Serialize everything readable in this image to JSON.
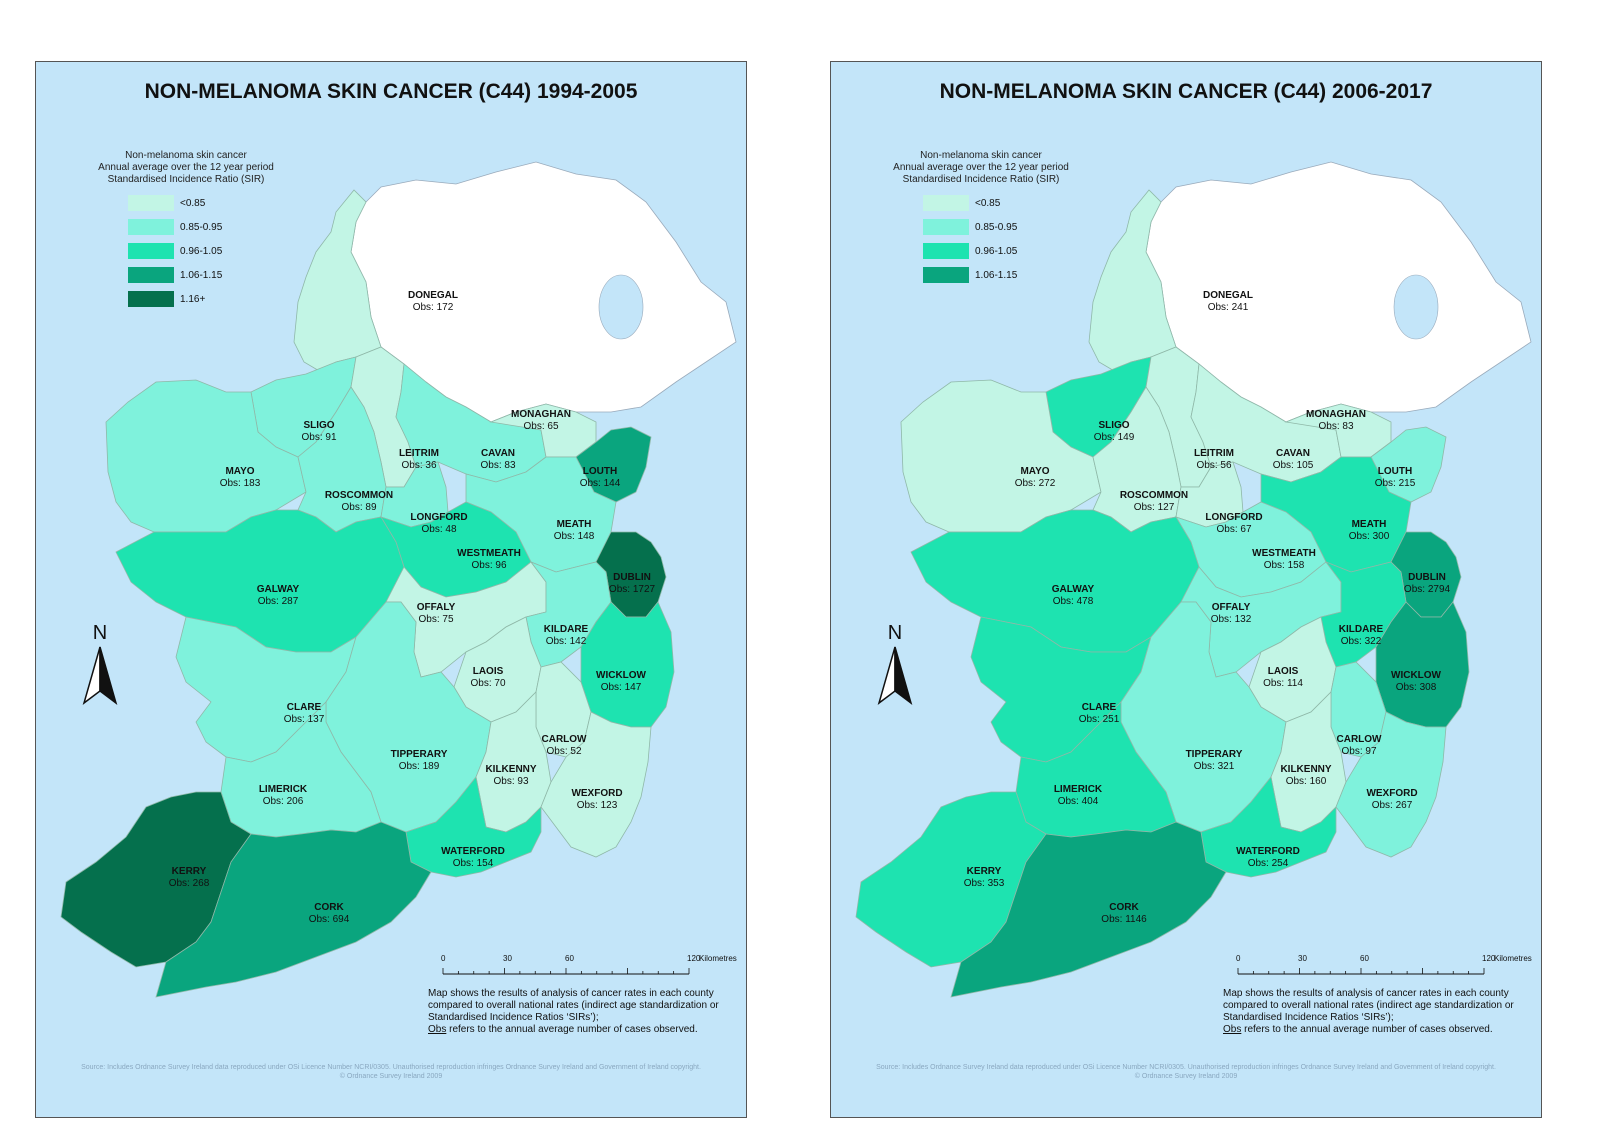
{
  "colors": {
    "sea": "#c3e5f9",
    "northern_ireland": "#ffffff",
    "class_lt085": "#c2f5e5",
    "class_085_095": "#7ff2dc",
    "class_096_105": "#1ee3b0",
    "class_106_115": "#0aa57e",
    "class_116plus": "#05704d"
  },
  "maps": [
    {
      "title": "NON-MELANOMA SKIN CANCER (C44) 1994-2005",
      "legend": {
        "line1": "Non-melanoma skin cancer",
        "line2": "Annual average over the 12 year period",
        "line3": "Standardised Incidence Ratio (SIR)",
        "items": [
          {
            "label": "<0.85",
            "color": "#c2f5e5"
          },
          {
            "label": "0.85-0.95",
            "color": "#7ff2dc"
          },
          {
            "label": "0.96-1.05",
            "color": "#1ee3b0"
          },
          {
            "label": "1.06-1.15",
            "color": "#0aa57e"
          },
          {
            "label": "1.16+",
            "color": "#05704d"
          }
        ]
      },
      "counties": [
        {
          "name": "DONEGAL",
          "obs": "Obs: 172",
          "class": "class_lt085"
        },
        {
          "name": "SLIGO",
          "obs": "Obs: 91",
          "class": "class_085_095"
        },
        {
          "name": "MAYO",
          "obs": "Obs: 183",
          "class": "class_085_095"
        },
        {
          "name": "LEITRIM",
          "obs": "Obs: 36",
          "class": "class_lt085"
        },
        {
          "name": "CAVAN",
          "obs": "Obs: 83",
          "class": "class_085_095"
        },
        {
          "name": "MONAGHAN",
          "obs": "Obs: 65",
          "class": "class_lt085"
        },
        {
          "name": "LOUTH",
          "obs": "Obs: 144",
          "class": "class_106_115"
        },
        {
          "name": "ROSCOMMON",
          "obs": "Obs: 89",
          "class": "class_085_095"
        },
        {
          "name": "LONGFORD",
          "obs": "Obs: 48",
          "class": "class_085_095"
        },
        {
          "name": "MEATH",
          "obs": "Obs: 148",
          "class": "class_085_095"
        },
        {
          "name": "WESTMEATH",
          "obs": "Obs: 96",
          "class": "class_096_105"
        },
        {
          "name": "GALWAY",
          "obs": "Obs: 287",
          "class": "class_096_105"
        },
        {
          "name": "DUBLIN",
          "obs": "Obs: 1727",
          "class": "class_116plus"
        },
        {
          "name": "OFFALY",
          "obs": "Obs: 75",
          "class": "class_lt085"
        },
        {
          "name": "KILDARE",
          "obs": "Obs: 142",
          "class": "class_085_095"
        },
        {
          "name": "LAOIS",
          "obs": "Obs: 70",
          "class": "class_lt085"
        },
        {
          "name": "WICKLOW",
          "obs": "Obs: 147",
          "class": "class_096_105"
        },
        {
          "name": "CLARE",
          "obs": "Obs: 137",
          "class": "class_085_095"
        },
        {
          "name": "CARLOW",
          "obs": "Obs: 52",
          "class": "class_lt085"
        },
        {
          "name": "TIPPERARY",
          "obs": "Obs: 189",
          "class": "class_085_095"
        },
        {
          "name": "KILKENNY",
          "obs": "Obs: 93",
          "class": "class_lt085"
        },
        {
          "name": "LIMERICK",
          "obs": "Obs: 206",
          "class": "class_085_095"
        },
        {
          "name": "WEXFORD",
          "obs": "Obs: 123",
          "class": "class_lt085"
        },
        {
          "name": "WATERFORD",
          "obs": "Obs: 154",
          "class": "class_096_105"
        },
        {
          "name": "KERRY",
          "obs": "Obs: 268",
          "class": "class_116plus"
        },
        {
          "name": "CORK",
          "obs": "Obs: 694",
          "class": "class_106_115"
        }
      ]
    },
    {
      "title": "NON-MELANOMA SKIN CANCER (C44) 2006-2017",
      "legend": {
        "line1": "Non-melanoma skin cancer",
        "line2": "Annual average over the 12 year period",
        "line3": "Standardised Incidence Ratio (SIR)",
        "items": [
          {
            "label": "<0.85",
            "color": "#c2f5e5"
          },
          {
            "label": "0.85-0.95",
            "color": "#7ff2dc"
          },
          {
            "label": "0.96-1.05",
            "color": "#1ee3b0"
          },
          {
            "label": "1.06-1.15",
            "color": "#0aa57e"
          }
        ]
      },
      "counties": [
        {
          "name": "DONEGAL",
          "obs": "Obs: 241",
          "class": "class_lt085"
        },
        {
          "name": "SLIGO",
          "obs": "Obs: 149",
          "class": "class_096_105"
        },
        {
          "name": "MAYO",
          "obs": "Obs: 272",
          "class": "class_lt085"
        },
        {
          "name": "LEITRIM",
          "obs": "Obs: 56",
          "class": "class_lt085"
        },
        {
          "name": "CAVAN",
          "obs": "Obs: 105",
          "class": "class_lt085"
        },
        {
          "name": "MONAGHAN",
          "obs": "Obs: 83",
          "class": "class_lt085"
        },
        {
          "name": "LOUTH",
          "obs": "Obs: 215",
          "class": "class_085_095"
        },
        {
          "name": "ROSCOMMON",
          "obs": "Obs: 127",
          "class": "class_lt085"
        },
        {
          "name": "LONGFORD",
          "obs": "Obs: 67",
          "class": "class_lt085"
        },
        {
          "name": "MEATH",
          "obs": "Obs: 300",
          "class": "class_096_105"
        },
        {
          "name": "WESTMEATH",
          "obs": "Obs: 158",
          "class": "class_085_095"
        },
        {
          "name": "GALWAY",
          "obs": "Obs: 478",
          "class": "class_096_105"
        },
        {
          "name": "DUBLIN",
          "obs": "Obs: 2794",
          "class": "class_106_115"
        },
        {
          "name": "OFFALY",
          "obs": "Obs: 132",
          "class": "class_085_095"
        },
        {
          "name": "KILDARE",
          "obs": "Obs: 322",
          "class": "class_096_105"
        },
        {
          "name": "LAOIS",
          "obs": "Obs: 114",
          "class": "class_lt085"
        },
        {
          "name": "WICKLOW",
          "obs": "Obs: 308",
          "class": "class_106_115"
        },
        {
          "name": "CLARE",
          "obs": "Obs: 251",
          "class": "class_096_105"
        },
        {
          "name": "CARLOW",
          "obs": "Obs: 97",
          "class": "class_085_095"
        },
        {
          "name": "TIPPERARY",
          "obs": "Obs: 321",
          "class": "class_085_095"
        },
        {
          "name": "KILKENNY",
          "obs": "Obs: 160",
          "class": "class_lt085"
        },
        {
          "name": "LIMERICK",
          "obs": "Obs: 404",
          "class": "class_096_105"
        },
        {
          "name": "WEXFORD",
          "obs": "Obs: 267",
          "class": "class_085_095"
        },
        {
          "name": "WATERFORD",
          "obs": "Obs: 254",
          "class": "class_096_105"
        },
        {
          "name": "KERRY",
          "obs": "Obs: 353",
          "class": "class_096_105"
        },
        {
          "name": "CORK",
          "obs": "Obs: 1146",
          "class": "class_106_115"
        }
      ]
    }
  ],
  "north_label": "N",
  "scale": {
    "ticks": [
      "0",
      "30",
      "60",
      "120"
    ],
    "unit": "Kilometres"
  },
  "notes": {
    "line1": "Map shows the results of analysis of cancer rates in each county",
    "line2": "compared to overall national rates (indirect age standardization or",
    "line3": "Standardised Incidence Ratios ‘SIRs’);",
    "obs_word": "Obs",
    "line4_rest": " refers to the annual average number of cases observed."
  },
  "source": {
    "line1": "Source: Includes Ordnance Survey Ireland data reproduced under OSi Licence Number NCRI/0305. Unauthorised reproduction infringes Ordnance Survey Ireland and Government of Ireland copyright.",
    "line2": "© Ordnance Survey Ireland 2009"
  }
}
